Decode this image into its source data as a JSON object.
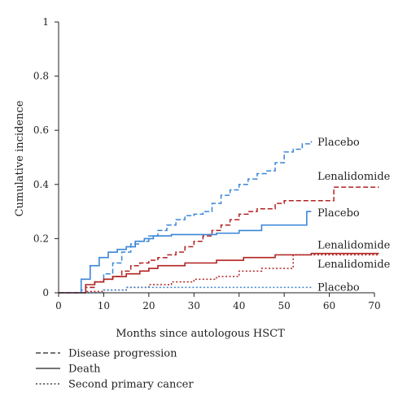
{
  "chart_data": {
    "type": "line",
    "line_shape": "step",
    "title": "",
    "xlabel": "Months since autologous HSCT",
    "ylabel": "Cumulative incidence",
    "xlim": [
      0,
      70
    ],
    "ylim": [
      0,
      1
    ],
    "xticks": [
      0,
      10,
      20,
      30,
      40,
      50,
      60,
      70
    ],
    "yticks": [
      0,
      0.2,
      0.4,
      0.6,
      0.8,
      1
    ],
    "ytick_labels": [
      "0",
      "0.2",
      "0.4",
      "0.6",
      "0.8",
      "1"
    ],
    "grid": false,
    "legend": {
      "position": "bottom-left",
      "entries": [
        {
          "label": "Disease progression",
          "style": "dashed"
        },
        {
          "label": "Death",
          "style": "solid"
        },
        {
          "label": "Second primary cancer",
          "style": "dotted"
        }
      ]
    },
    "series": [
      {
        "name": "Placebo",
        "group": "Disease progression",
        "color": "#3a86d6",
        "style": "dashed",
        "x": [
          0,
          5,
          6,
          8,
          10,
          12,
          14,
          16,
          18,
          20,
          22,
          24,
          26,
          28,
          30,
          32,
          34,
          36,
          38,
          40,
          42,
          44,
          46,
          48,
          50,
          52,
          54,
          56
        ],
        "y": [
          0,
          0.01,
          0.02,
          0.04,
          0.07,
          0.11,
          0.15,
          0.18,
          0.19,
          0.21,
          0.23,
          0.25,
          0.27,
          0.285,
          0.29,
          0.3,
          0.33,
          0.36,
          0.38,
          0.4,
          0.42,
          0.44,
          0.45,
          0.48,
          0.52,
          0.53,
          0.55,
          0.56
        ]
      },
      {
        "name": "Lenalidomide",
        "group": "Disease progression",
        "color": "#b22222",
        "style": "dashed",
        "x": [
          0,
          6,
          8,
          10,
          12,
          14,
          16,
          18,
          20,
          22,
          24,
          26,
          28,
          30,
          32,
          34,
          36,
          38,
          40,
          42,
          44,
          46,
          48,
          50,
          55,
          61,
          71
        ],
        "y": [
          0,
          0.02,
          0.04,
          0.05,
          0.06,
          0.08,
          0.1,
          0.11,
          0.12,
          0.13,
          0.14,
          0.15,
          0.17,
          0.19,
          0.21,
          0.23,
          0.25,
          0.27,
          0.29,
          0.3,
          0.31,
          0.31,
          0.33,
          0.34,
          0.34,
          0.39,
          0.39
        ]
      },
      {
        "name": "Placebo",
        "group": "Death",
        "color": "#3a86d6",
        "style": "solid",
        "x": [
          0,
          5,
          7,
          9,
          11,
          13,
          15,
          17,
          19,
          21,
          25,
          35,
          40,
          45,
          52,
          55,
          56
        ],
        "y": [
          0,
          0.05,
          0.1,
          0.13,
          0.15,
          0.16,
          0.17,
          0.19,
          0.2,
          0.21,
          0.215,
          0.22,
          0.23,
          0.25,
          0.25,
          0.3,
          0.3
        ]
      },
      {
        "name": "Lenalidomide",
        "group": "Death",
        "color": "#b22222",
        "style": "solid",
        "x": [
          0,
          6,
          8,
          10,
          12,
          15,
          18,
          20,
          22,
          28,
          35,
          41,
          48,
          56,
          71
        ],
        "y": [
          0,
          0.03,
          0.04,
          0.05,
          0.06,
          0.07,
          0.08,
          0.09,
          0.1,
          0.11,
          0.12,
          0.13,
          0.14,
          0.145,
          0.145
        ]
      },
      {
        "name": "Lenalidomide",
        "group": "Second primary cancer",
        "color": "#b22222",
        "style": "dotted",
        "x": [
          0,
          6,
          10,
          15,
          20,
          25,
          30,
          35,
          40,
          45,
          50,
          52,
          71
        ],
        "y": [
          0,
          0.005,
          0.01,
          0.02,
          0.03,
          0.04,
          0.05,
          0.06,
          0.08,
          0.09,
          0.09,
          0.14,
          0.14
        ]
      },
      {
        "name": "Placebo",
        "group": "Second primary cancer",
        "color": "#3a86d6",
        "style": "dotted",
        "x": [
          0,
          10,
          15,
          56
        ],
        "y": [
          0,
          0.01,
          0.02,
          0.02
        ]
      }
    ],
    "series_labels": [
      {
        "text": "Placebo",
        "x": 57,
        "y": 0.555
      },
      {
        "text": "Lenalidomide",
        "x": 57,
        "y": 0.43
      },
      {
        "text": "Placebo",
        "x": 57,
        "y": 0.295
      },
      {
        "text": "Lenalidomide",
        "x": 57,
        "y": 0.175
      },
      {
        "text": "Lenalidomide",
        "x": 57,
        "y": 0.105
      },
      {
        "text": "Placebo",
        "x": 57,
        "y": 0.02
      }
    ]
  }
}
